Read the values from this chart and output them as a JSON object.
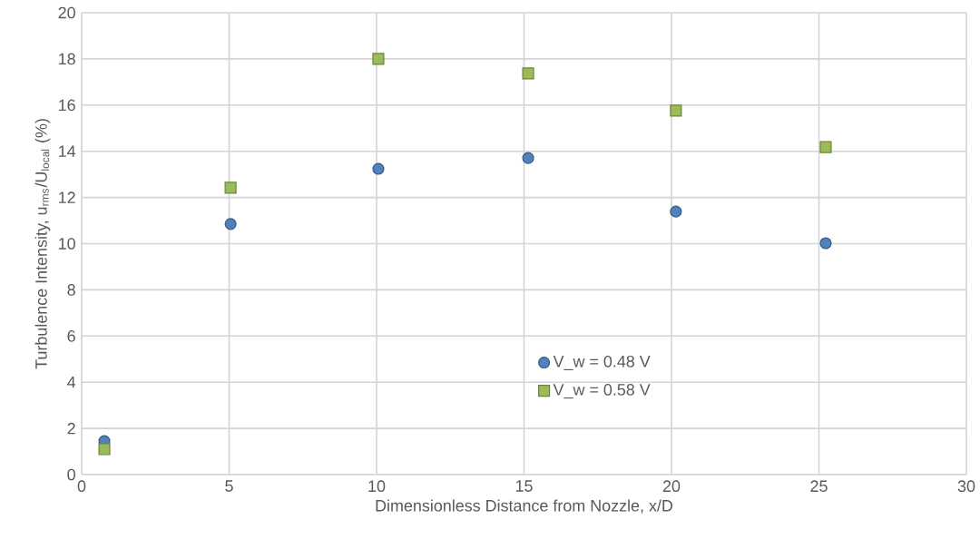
{
  "chart_data": {
    "type": "scatter",
    "xlabel": "Dimensionless Distance from Nozzle, x/D",
    "ylabel": "Turbulence Intensity, u$_{rms}$/U$_{local}$ (%)",
    "x": [
      0.77,
      5.05,
      10.06,
      15.14,
      20.15,
      25.23
    ],
    "series": [
      {
        "name": "V_w = 0.48 V",
        "color": "#4f81bd",
        "marker": "circle",
        "values": [
          1.45,
          10.85,
          13.24,
          13.71,
          11.39,
          10.02
        ]
      },
      {
        "name": "V_w = 0.58 V",
        "color": "#9bbb59",
        "marker": "square",
        "values": [
          1.1,
          12.42,
          18.0,
          17.37,
          15.76,
          14.18
        ]
      }
    ],
    "xlim": [
      0,
      30
    ],
    "ylim": [
      0,
      20
    ],
    "xticks": [
      0,
      5,
      10,
      15,
      20,
      25,
      30
    ],
    "yticks": [
      0,
      2,
      4,
      6,
      8,
      10,
      12,
      14,
      16,
      18,
      20
    ],
    "grid": true,
    "legend": "bottom"
  }
}
